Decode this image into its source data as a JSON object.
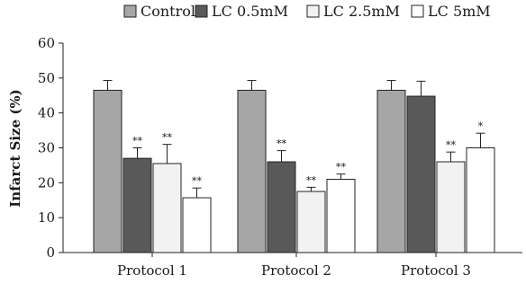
{
  "chart_data": {
    "type": "bar",
    "ylabel": "Infarct Size (%)",
    "ylim": [
      0,
      60
    ],
    "yticks": [
      0,
      10,
      20,
      30,
      40,
      50,
      60
    ],
    "grid": false,
    "legend_position": "top",
    "categories": [
      "Protocol 1",
      "Protocol 2",
      "Protocol 3"
    ],
    "series": [
      {
        "name": "Control",
        "color": "#a6a6a6",
        "values": [
          46.5,
          46.5,
          46.5
        ],
        "errors": [
          2.8,
          2.8,
          2.8
        ],
        "sig": [
          "",
          "",
          ""
        ]
      },
      {
        "name": "LC 0.5mM",
        "color": "#595959",
        "values": [
          27,
          26,
          44.8
        ],
        "errors": [
          3,
          3.2,
          4.3
        ],
        "sig": [
          "**",
          "**",
          ""
        ]
      },
      {
        "name": "LC 2.5mM",
        "color": "#f2f2f2",
        "values": [
          25.5,
          17.5,
          26
        ],
        "errors": [
          5.5,
          1.2,
          2.8
        ],
        "sig": [
          "**",
          "**",
          "**"
        ]
      },
      {
        "name": "LC 5mM",
        "color": "#ffffff",
        "values": [
          15.7,
          21,
          30
        ],
        "errors": [
          2.8,
          1.5,
          4.2
        ],
        "sig": [
          "**",
          "**",
          "*"
        ]
      }
    ]
  }
}
